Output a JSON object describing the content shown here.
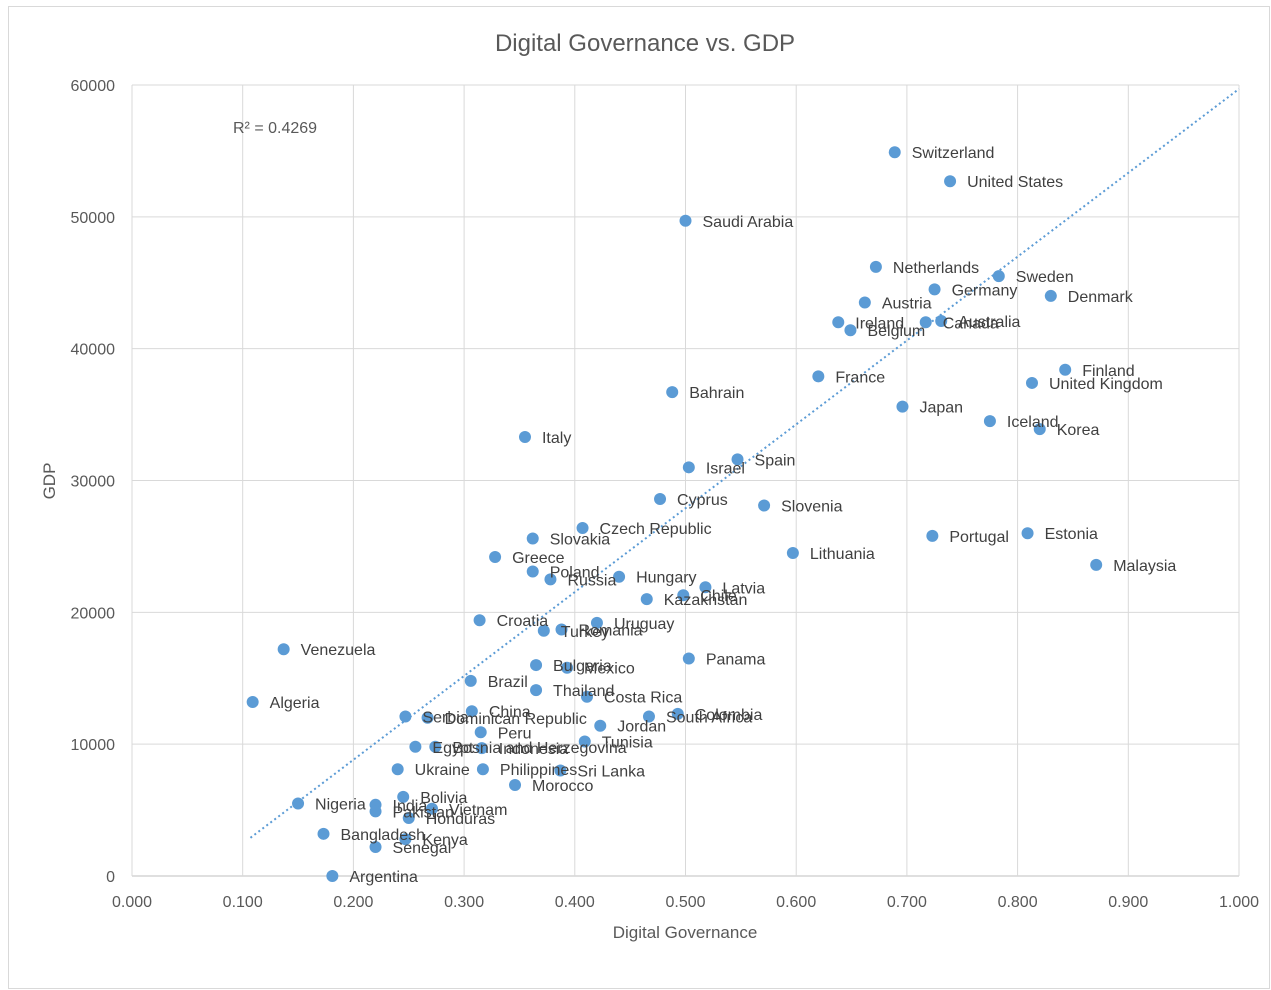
{
  "chart_data": {
    "type": "scatter",
    "title": "Digital Governance vs. GDP",
    "xlabel": "Digital Governance",
    "ylabel": "GDP",
    "xlim": [
      0.0,
      1.0
    ],
    "ylim": [
      0,
      60000
    ],
    "xticks": [
      0.0,
      0.1,
      0.2,
      0.3,
      0.4,
      0.5,
      0.6,
      0.7,
      0.8,
      0.9,
      1.0
    ],
    "xtick_labels": [
      "0.000",
      "0.100",
      "0.200",
      "0.300",
      "0.400",
      "0.500",
      "0.600",
      "0.700",
      "0.800",
      "0.900",
      "1.000"
    ],
    "yticks": [
      0,
      10000,
      20000,
      30000,
      40000,
      50000,
      60000
    ],
    "ytick_labels": [
      "0",
      "10000",
      "20000",
      "30000",
      "40000",
      "50000",
      "60000"
    ],
    "grid": true,
    "point_color": "#5b9bd5",
    "trendline": {
      "type": "linear",
      "color": "#5b9bd5",
      "style": "dotted",
      "x": [
        0.107,
        1.0
      ],
      "y": [
        2900,
        59700
      ],
      "r_squared_label": "R² = 0.4269"
    },
    "points": [
      {
        "label": "Switzerland",
        "x": 0.689,
        "y": 54900
      },
      {
        "label": "United States",
        "x": 0.739,
        "y": 52700
      },
      {
        "label": "Saudi Arabia",
        "x": 0.5,
        "y": 49700
      },
      {
        "label": "Netherlands",
        "x": 0.672,
        "y": 46200
      },
      {
        "label": "Sweden",
        "x": 0.783,
        "y": 45500
      },
      {
        "label": "Germany",
        "x": 0.725,
        "y": 44500
      },
      {
        "label": "Denmark",
        "x": 0.83,
        "y": 44000
      },
      {
        "label": "Austria",
        "x": 0.662,
        "y": 43500
      },
      {
        "label": "Ireland",
        "x": 0.638,
        "y": 42000
      },
      {
        "label": "Belgium",
        "x": 0.649,
        "y": 41400
      },
      {
        "label": "Canada",
        "x": 0.717,
        "y": 42000
      },
      {
        "label": "Australia",
        "x": 0.731,
        "y": 42100
      },
      {
        "label": "Finland",
        "x": 0.843,
        "y": 38400
      },
      {
        "label": "United Kingdom",
        "x": 0.813,
        "y": 37400
      },
      {
        "label": "France",
        "x": 0.62,
        "y": 37900
      },
      {
        "label": "Bahrain",
        "x": 0.488,
        "y": 36700
      },
      {
        "label": "Japan",
        "x": 0.696,
        "y": 35600
      },
      {
        "label": "Iceland",
        "x": 0.775,
        "y": 34500
      },
      {
        "label": "Korea",
        "x": 0.82,
        "y": 33900
      },
      {
        "label": "Italy",
        "x": 0.355,
        "y": 33300
      },
      {
        "label": "Israel",
        "x": 0.503,
        "y": 31000
      },
      {
        "label": "Spain",
        "x": 0.547,
        "y": 31600
      },
      {
        "label": "Cyprus",
        "x": 0.477,
        "y": 28600
      },
      {
        "label": "Slovenia",
        "x": 0.571,
        "y": 28100
      },
      {
        "label": "Czech Republic",
        "x": 0.407,
        "y": 26400
      },
      {
        "label": "Slovakia",
        "x": 0.362,
        "y": 25600
      },
      {
        "label": "Portugal",
        "x": 0.723,
        "y": 25800
      },
      {
        "label": "Estonia",
        "x": 0.809,
        "y": 26000
      },
      {
        "label": "Greece",
        "x": 0.328,
        "y": 24200
      },
      {
        "label": "Lithuania",
        "x": 0.597,
        "y": 24500
      },
      {
        "label": "Malaysia",
        "x": 0.871,
        "y": 23600
      },
      {
        "label": "Poland",
        "x": 0.362,
        "y": 23100
      },
      {
        "label": "Russia",
        "x": 0.378,
        "y": 22500
      },
      {
        "label": "Hungary",
        "x": 0.44,
        "y": 22700
      },
      {
        "label": "Latvia",
        "x": 0.518,
        "y": 21900
      },
      {
        "label": "Chile",
        "x": 0.498,
        "y": 21300
      },
      {
        "label": "Kazakhstan",
        "x": 0.465,
        "y": 21000
      },
      {
        "label": "Croatia",
        "x": 0.314,
        "y": 19400
      },
      {
        "label": "Uruguay",
        "x": 0.42,
        "y": 19200
      },
      {
        "label": "Turkey",
        "x": 0.372,
        "y": 18600
      },
      {
        "label": "Romania",
        "x": 0.388,
        "y": 18700
      },
      {
        "label": "Venezuela",
        "x": 0.137,
        "y": 17200
      },
      {
        "label": "Panama",
        "x": 0.503,
        "y": 16500
      },
      {
        "label": "Bulgaria",
        "x": 0.365,
        "y": 16000
      },
      {
        "label": "Mexico",
        "x": 0.393,
        "y": 15800
      },
      {
        "label": "Brazil",
        "x": 0.306,
        "y": 14800
      },
      {
        "label": "Thailand",
        "x": 0.365,
        "y": 14100
      },
      {
        "label": "Costa Rica",
        "x": 0.411,
        "y": 13600
      },
      {
        "label": "Algeria",
        "x": 0.109,
        "y": 13200
      },
      {
        "label": "China",
        "x": 0.307,
        "y": 12500
      },
      {
        "label": "Serbia",
        "x": 0.247,
        "y": 12100
      },
      {
        "label": "Dominican Republic",
        "x": 0.267,
        "y": 12000
      },
      {
        "label": "South Africa",
        "x": 0.467,
        "y": 12100
      },
      {
        "label": "Colombia",
        "x": 0.493,
        "y": 12300
      },
      {
        "label": "Jordan",
        "x": 0.423,
        "y": 11400
      },
      {
        "label": "Peru",
        "x": 0.315,
        "y": 10900
      },
      {
        "label": "Tunisia",
        "x": 0.409,
        "y": 10200
      },
      {
        "label": "Egypt",
        "x": 0.256,
        "y": 9800
      },
      {
        "label": "Bosnia and Herzegovina",
        "x": 0.274,
        "y": 9800
      },
      {
        "label": "Indonesia",
        "x": 0.316,
        "y": 9700
      },
      {
        "label": "Ukraine",
        "x": 0.24,
        "y": 8100
      },
      {
        "label": "Philippines",
        "x": 0.317,
        "y": 8100
      },
      {
        "label": "Sri Lanka",
        "x": 0.387,
        "y": 8000
      },
      {
        "label": "Morocco",
        "x": 0.346,
        "y": 6900
      },
      {
        "label": "Bolivia",
        "x": 0.245,
        "y": 6000
      },
      {
        "label": "Nigeria",
        "x": 0.15,
        "y": 5500
      },
      {
        "label": "India",
        "x": 0.22,
        "y": 5400
      },
      {
        "label": "Pakistan",
        "x": 0.22,
        "y": 4900
      },
      {
        "label": "Vietnam",
        "x": 0.271,
        "y": 5100
      },
      {
        "label": "Honduras",
        "x": 0.25,
        "y": 4400
      },
      {
        "label": "Bangladesh",
        "x": 0.173,
        "y": 3200
      },
      {
        "label": "Kenya",
        "x": 0.247,
        "y": 2800
      },
      {
        "label": "Senegal",
        "x": 0.22,
        "y": 2200
      },
      {
        "label": "Argentina",
        "x": 0.181,
        "y": 0
      }
    ]
  }
}
